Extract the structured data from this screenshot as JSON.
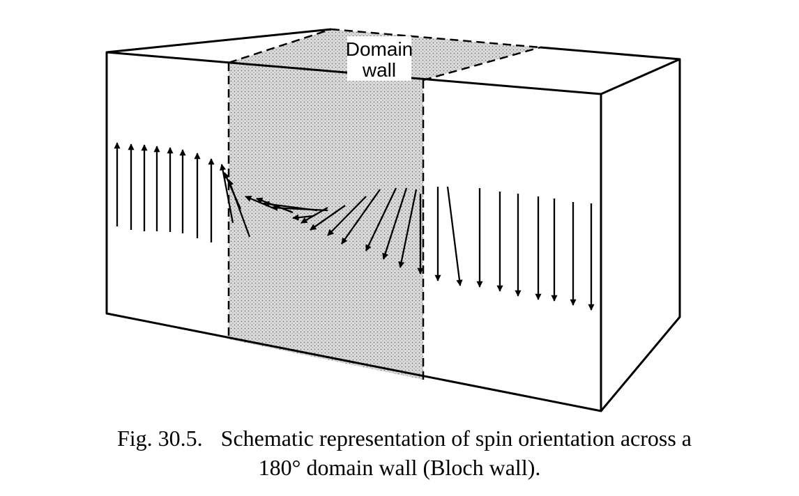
{
  "figure": {
    "wall_label_line1": "Domain",
    "wall_label_line2": "wall"
  },
  "caption": {
    "figure_number": "Fig. 30.5.",
    "line1": "Schematic representation of spin orientation across a",
    "line2": "180° domain wall (Bloch wall)."
  },
  "colors": {
    "ink": "#000000",
    "wall_fill": "#d4d4d4",
    "background": "#ffffff"
  },
  "spins": {
    "left_domain": {
      "direction": "up",
      "count": 8
    },
    "wall": {
      "description_direction": "rotating",
      "count": 16
    },
    "right_domain": {
      "direction": "down",
      "count": 9
    }
  }
}
